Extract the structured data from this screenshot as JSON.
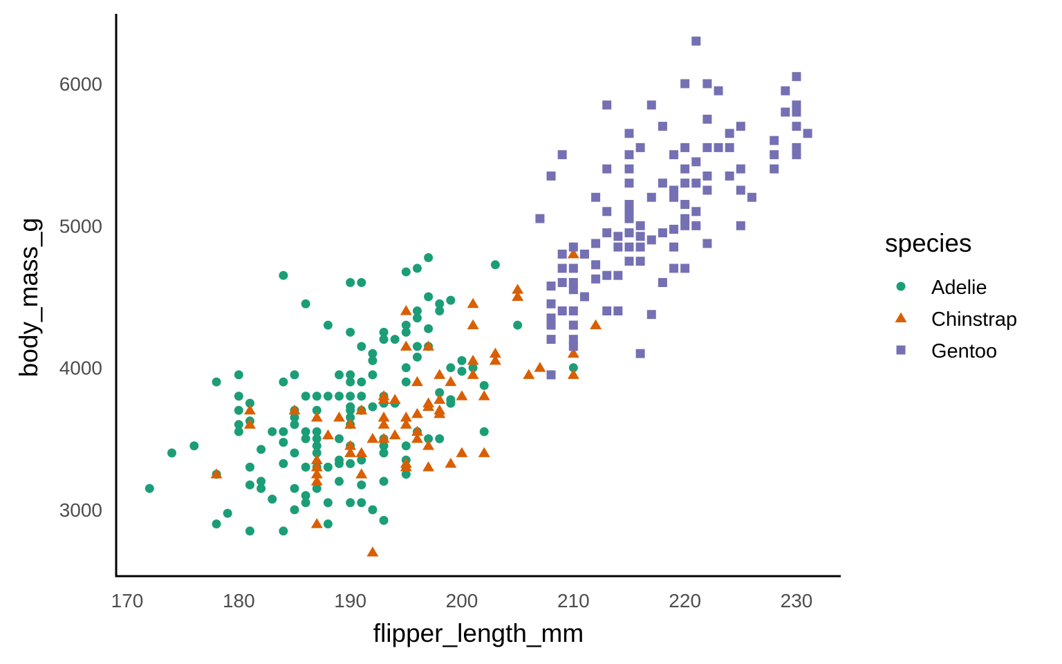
{
  "chart_data": {
    "type": "scatter",
    "title": "",
    "xlabel": "flipper_length_mm",
    "ylabel": "body_mass_g",
    "xlim": [
      169,
      234
    ],
    "ylim": [
      2550,
      6450
    ],
    "xticks": [
      170,
      180,
      190,
      200,
      210,
      220,
      230
    ],
    "yticks": [
      3000,
      4000,
      5000,
      6000
    ],
    "xtick_labels": [
      "170",
      "180",
      "190",
      "200",
      "210",
      "220",
      "230"
    ],
    "ytick_labels": [
      "3000",
      "4000",
      "5000",
      "6000"
    ],
    "grid": false,
    "legend": {
      "title": "species",
      "position": "right"
    },
    "series": [
      {
        "name": "Adelie",
        "marker": "circle",
        "color": "#1B9E77",
        "points": [
          [
            172,
            3150
          ],
          [
            174,
            3400
          ],
          [
            176,
            3450
          ],
          [
            178,
            3250
          ],
          [
            178,
            3900
          ],
          [
            178,
            2900
          ],
          [
            179,
            2975
          ],
          [
            180,
            3950
          ],
          [
            180,
            3800
          ],
          [
            180,
            3700
          ],
          [
            180,
            3600
          ],
          [
            180,
            3550
          ],
          [
            181,
            3750
          ],
          [
            181,
            3625
          ],
          [
            181,
            3300
          ],
          [
            181,
            3175
          ],
          [
            181,
            2850
          ],
          [
            182,
            3425
          ],
          [
            182,
            3200
          ],
          [
            182,
            3150
          ],
          [
            183,
            3550
          ],
          [
            183,
            3075
          ],
          [
            184,
            4650
          ],
          [
            184,
            3900
          ],
          [
            184,
            3550
          ],
          [
            184,
            3475
          ],
          [
            184,
            3325
          ],
          [
            184,
            2850
          ],
          [
            185,
            3950
          ],
          [
            185,
            3700
          ],
          [
            185,
            3650
          ],
          [
            185,
            3600
          ],
          [
            185,
            3400
          ],
          [
            185,
            3150
          ],
          [
            185,
            3000
          ],
          [
            186,
            4450
          ],
          [
            186,
            3800
          ],
          [
            186,
            3550
          ],
          [
            186,
            3500
          ],
          [
            186,
            3300
          ],
          [
            186,
            3100
          ],
          [
            186,
            3050
          ],
          [
            187,
            3800
          ],
          [
            187,
            3700
          ],
          [
            187,
            3550
          ],
          [
            187,
            3500
          ],
          [
            187,
            3450
          ],
          [
            187,
            3400
          ],
          [
            187,
            3300
          ],
          [
            187,
            3150
          ],
          [
            188,
            4300
          ],
          [
            188,
            3800
          ],
          [
            188,
            3300
          ],
          [
            188,
            3050
          ],
          [
            188,
            2900
          ],
          [
            189,
            3950
          ],
          [
            189,
            3800
          ],
          [
            189,
            3500
          ],
          [
            189,
            3350
          ],
          [
            189,
            3325
          ],
          [
            189,
            3200
          ],
          [
            190,
            4600
          ],
          [
            190,
            4250
          ],
          [
            190,
            3950
          ],
          [
            190,
            3900
          ],
          [
            190,
            3800
          ],
          [
            190,
            3725
          ],
          [
            190,
            3700
          ],
          [
            190,
            3650
          ],
          [
            190,
            3600
          ],
          [
            190,
            3450
          ],
          [
            190,
            3325
          ],
          [
            190,
            3050
          ],
          [
            191,
            4600
          ],
          [
            191,
            4150
          ],
          [
            191,
            3900
          ],
          [
            191,
            3800
          ],
          [
            191,
            3700
          ],
          [
            191,
            3350
          ],
          [
            191,
            3175
          ],
          [
            191,
            3050
          ],
          [
            192,
            4100
          ],
          [
            192,
            4050
          ],
          [
            192,
            3950
          ],
          [
            192,
            3725
          ],
          [
            192,
            3000
          ],
          [
            193,
            4250
          ],
          [
            193,
            4200
          ],
          [
            193,
            3800
          ],
          [
            193,
            3750
          ],
          [
            193,
            3500
          ],
          [
            193,
            3450
          ],
          [
            193,
            3400
          ],
          [
            193,
            3200
          ],
          [
            193,
            2925
          ],
          [
            194,
            4200
          ],
          [
            194,
            3750
          ],
          [
            195,
            4675
          ],
          [
            195,
            4300
          ],
          [
            195,
            4250
          ],
          [
            195,
            4000
          ],
          [
            195,
            3900
          ],
          [
            195,
            3450
          ],
          [
            195,
            3350
          ],
          [
            195,
            3300
          ],
          [
            195,
            3250
          ],
          [
            196,
            4700
          ],
          [
            196,
            4400
          ],
          [
            196,
            4350
          ],
          [
            196,
            4150
          ],
          [
            196,
            4075
          ],
          [
            196,
            3550
          ],
          [
            197,
            4775
          ],
          [
            197,
            4500
          ],
          [
            197,
            4275
          ],
          [
            197,
            4150
          ],
          [
            197,
            3500
          ],
          [
            198,
            4450
          ],
          [
            198,
            4400
          ],
          [
            198,
            3825
          ],
          [
            198,
            3500
          ],
          [
            199,
            4475
          ],
          [
            199,
            4000
          ],
          [
            199,
            3775
          ],
          [
            199,
            3750
          ],
          [
            200,
            4050
          ],
          [
            200,
            3975
          ],
          [
            201,
            4000
          ],
          [
            202,
            3875
          ],
          [
            202,
            3550
          ],
          [
            203,
            4725
          ],
          [
            205,
            4300
          ],
          [
            210,
            4000
          ]
        ]
      },
      {
        "name": "Chinstrap",
        "marker": "triangle",
        "color": "#D95F02",
        "points": [
          [
            178,
            3250
          ],
          [
            181,
            3700
          ],
          [
            181,
            3600
          ],
          [
            185,
            3700
          ],
          [
            187,
            3650
          ],
          [
            187,
            3350
          ],
          [
            187,
            3300
          ],
          [
            187,
            3250
          ],
          [
            187,
            3200
          ],
          [
            187,
            2900
          ],
          [
            188,
            3525
          ],
          [
            189,
            3650
          ],
          [
            190,
            3600
          ],
          [
            190,
            3450
          ],
          [
            190,
            3400
          ],
          [
            191,
            3700
          ],
          [
            191,
            3400
          ],
          [
            191,
            3250
          ],
          [
            192,
            3500
          ],
          [
            192,
            2700
          ],
          [
            193,
            3800
          ],
          [
            193,
            3775
          ],
          [
            193,
            3650
          ],
          [
            193,
            3600
          ],
          [
            193,
            3500
          ],
          [
            194,
            3775
          ],
          [
            194,
            3525
          ],
          [
            195,
            4400
          ],
          [
            195,
            4150
          ],
          [
            195,
            3650
          ],
          [
            195,
            3600
          ],
          [
            195,
            3325
          ],
          [
            195,
            3300
          ],
          [
            196,
            3900
          ],
          [
            196,
            3675
          ],
          [
            196,
            3550
          ],
          [
            196,
            3500
          ],
          [
            197,
            4150
          ],
          [
            197,
            3750
          ],
          [
            197,
            3725
          ],
          [
            197,
            3450
          ],
          [
            197,
            3300
          ],
          [
            198,
            3950
          ],
          [
            198,
            3775
          ],
          [
            198,
            3700
          ],
          [
            198,
            3675
          ],
          [
            199,
            3900
          ],
          [
            199,
            3325
          ],
          [
            200,
            3800
          ],
          [
            200,
            3400
          ],
          [
            201,
            4450
          ],
          [
            201,
            4300
          ],
          [
            201,
            4050
          ],
          [
            201,
            3950
          ],
          [
            202,
            3800
          ],
          [
            202,
            3400
          ],
          [
            203,
            4100
          ],
          [
            203,
            4050
          ],
          [
            205,
            4550
          ],
          [
            205,
            4500
          ],
          [
            206,
            3950
          ],
          [
            207,
            4000
          ],
          [
            210,
            4800
          ],
          [
            210,
            4100
          ],
          [
            210,
            3950
          ],
          [
            212,
            4300
          ]
        ]
      },
      {
        "name": "Gentoo",
        "marker": "square",
        "color": "#7570B3",
        "points": [
          [
            207,
            5050
          ],
          [
            208,
            5350
          ],
          [
            208,
            4575
          ],
          [
            208,
            4450
          ],
          [
            208,
            4350
          ],
          [
            208,
            4300
          ],
          [
            208,
            4200
          ],
          [
            208,
            3950
          ],
          [
            209,
            5500
          ],
          [
            209,
            4800
          ],
          [
            209,
            4700
          ],
          [
            209,
            4600
          ],
          [
            209,
            4400
          ],
          [
            210,
            4850
          ],
          [
            210,
            4700
          ],
          [
            210,
            4600
          ],
          [
            210,
            4550
          ],
          [
            210,
            4400
          ],
          [
            210,
            4300
          ],
          [
            210,
            4200
          ],
          [
            210,
            4150
          ],
          [
            211,
            4800
          ],
          [
            211,
            4500
          ],
          [
            212,
            5200
          ],
          [
            212,
            4875
          ],
          [
            212,
            4725
          ],
          [
            212,
            4625
          ],
          [
            213,
            5850
          ],
          [
            213,
            5400
          ],
          [
            213,
            5100
          ],
          [
            213,
            4950
          ],
          [
            213,
            4650
          ],
          [
            213,
            4400
          ],
          [
            214,
            4925
          ],
          [
            214,
            4850
          ],
          [
            214,
            4650
          ],
          [
            214,
            4400
          ],
          [
            215,
            5650
          ],
          [
            215,
            5500
          ],
          [
            215,
            5400
          ],
          [
            215,
            5300
          ],
          [
            215,
            5150
          ],
          [
            215,
            5100
          ],
          [
            215,
            5050
          ],
          [
            215,
            4950
          ],
          [
            215,
            4850
          ],
          [
            215,
            4750
          ],
          [
            216,
            5550
          ],
          [
            216,
            5000
          ],
          [
            216,
            4925
          ],
          [
            216,
            4850
          ],
          [
            216,
            4750
          ],
          [
            216,
            4100
          ],
          [
            217,
            5850
          ],
          [
            217,
            5200
          ],
          [
            217,
            4900
          ],
          [
            217,
            4375
          ],
          [
            218,
            5700
          ],
          [
            218,
            5300
          ],
          [
            218,
            4950
          ],
          [
            218,
            4600
          ],
          [
            219,
            5500
          ],
          [
            219,
            5250
          ],
          [
            219,
            5200
          ],
          [
            219,
            4975
          ],
          [
            219,
            4850
          ],
          [
            219,
            4700
          ],
          [
            220,
            6000
          ],
          [
            220,
            5550
          ],
          [
            220,
            5400
          ],
          [
            220,
            5300
          ],
          [
            220,
            5150
          ],
          [
            220,
            5050
          ],
          [
            220,
            5000
          ],
          [
            220,
            4700
          ],
          [
            221,
            6300
          ],
          [
            221,
            5450
          ],
          [
            221,
            5300
          ],
          [
            221,
            5100
          ],
          [
            221,
            5000
          ],
          [
            222,
            6000
          ],
          [
            222,
            5750
          ],
          [
            222,
            5550
          ],
          [
            222,
            5350
          ],
          [
            222,
            5250
          ],
          [
            222,
            4875
          ],
          [
            223,
            5950
          ],
          [
            223,
            5550
          ],
          [
            224,
            5650
          ],
          [
            224,
            5550
          ],
          [
            224,
            5350
          ],
          [
            225,
            5700
          ],
          [
            225,
            5400
          ],
          [
            225,
            5250
          ],
          [
            225,
            5000
          ],
          [
            226,
            5200
          ],
          [
            228,
            5600
          ],
          [
            228,
            5500
          ],
          [
            228,
            5400
          ],
          [
            229,
            5950
          ],
          [
            229,
            5800
          ],
          [
            230,
            6050
          ],
          [
            230,
            5850
          ],
          [
            230,
            5800
          ],
          [
            230,
            5700
          ],
          [
            230,
            5550
          ],
          [
            230,
            5500
          ],
          [
            231,
            5650
          ]
        ]
      }
    ]
  }
}
